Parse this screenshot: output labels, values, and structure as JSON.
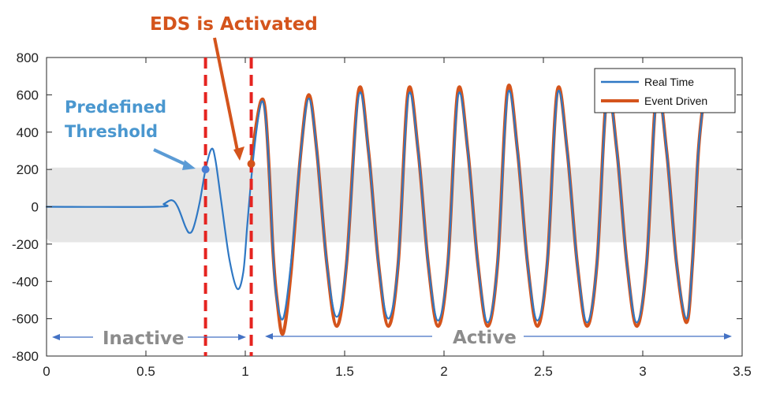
{
  "chart_data": {
    "type": "line",
    "xlim": [
      0,
      3.5
    ],
    "ylim": [
      -800,
      800
    ],
    "x_ticks": [
      0,
      0.5,
      1,
      1.5,
      2,
      2.5,
      3,
      3.5
    ],
    "x_tick_labels": [
      "0",
      "0.5",
      "1",
      "1.5",
      "2",
      "2.5",
      "3",
      "3.5"
    ],
    "y_ticks": [
      800,
      600,
      400,
      200,
      0,
      -200,
      -400,
      -600,
      -800
    ],
    "y_tick_labels": [
      "800",
      "600",
      "400",
      "200",
      "0",
      "-200",
      "-400",
      "-600",
      "-800"
    ],
    "grid": false,
    "legend_position": "top-right",
    "threshold_band": [
      -190,
      210
    ],
    "series": [
      {
        "name": "Real Time",
        "color": "#2f78c4",
        "x": [
          0,
          0.56,
          0.59,
          0.63,
          0.66,
          0.7,
          0.72,
          0.74,
          0.77,
          0.8,
          0.83,
          0.85,
          0.88,
          0.92,
          0.96,
          0.99,
          1.01,
          1.03,
          1.055,
          1.08,
          1.1,
          1.12,
          1.14,
          1.155,
          1.19,
          1.23,
          1.28,
          1.32,
          1.36,
          1.41,
          1.46,
          1.51,
          1.57,
          1.62,
          1.67,
          1.72,
          1.77,
          1.82,
          1.87,
          1.92,
          1.97,
          2.02,
          2.07,
          2.12,
          2.17,
          2.22,
          2.27,
          2.32,
          2.37,
          2.42,
          2.47,
          2.52,
          2.57,
          2.62,
          2.67,
          2.72,
          2.77,
          2.82,
          2.87,
          2.92,
          2.97,
          3.02,
          3.07,
          3.12,
          3.17,
          3.22,
          3.25,
          3.28,
          3.31
        ],
        "y": [
          0,
          0,
          15,
          35,
          0,
          -110,
          -140,
          -110,
          20,
          200,
          310,
          250,
          20,
          -280,
          -440,
          -350,
          -100,
          150,
          400,
          560,
          500,
          200,
          -250,
          -470,
          -600,
          -300,
          300,
          580,
          300,
          -300,
          -590,
          -300,
          590,
          300,
          -300,
          -600,
          -300,
          590,
          300,
          -300,
          -610,
          -300,
          590,
          300,
          -300,
          -620,
          -300,
          600,
          300,
          -300,
          -610,
          -300,
          600,
          300,
          -300,
          -620,
          -300,
          590,
          300,
          -300,
          -620,
          -300,
          600,
          300,
          -300,
          -600,
          -300,
          300,
          600
        ]
      },
      {
        "name": "Event Driven",
        "color": "#d4541c",
        "x": [
          1.03,
          1.055,
          1.08,
          1.1,
          1.12,
          1.14,
          1.16,
          1.19,
          1.23,
          1.28,
          1.32,
          1.36,
          1.41,
          1.46,
          1.51,
          1.57,
          1.62,
          1.67,
          1.72,
          1.77,
          1.82,
          1.87,
          1.92,
          1.97,
          2.02,
          2.07,
          2.12,
          2.17,
          2.22,
          2.27,
          2.32,
          2.37,
          2.42,
          2.47,
          2.52,
          2.57,
          2.62,
          2.67,
          2.72,
          2.77,
          2.82,
          2.87,
          2.92,
          2.97,
          3.02,
          3.07,
          3.12,
          3.17,
          3.22,
          3.25,
          3.28,
          3.31
        ],
        "y": [
          230,
          440,
          570,
          520,
          200,
          -250,
          -500,
          -680,
          -350,
          300,
          600,
          300,
          -300,
          -640,
          -300,
          620,
          300,
          -300,
          -640,
          -300,
          620,
          300,
          -300,
          -640,
          -300,
          620,
          300,
          -300,
          -640,
          -300,
          630,
          300,
          -300,
          -640,
          -300,
          620,
          300,
          -300,
          -640,
          -300,
          610,
          300,
          -300,
          -640,
          -300,
          620,
          300,
          -300,
          -620,
          -300,
          300,
          610
        ]
      }
    ],
    "markers": [
      {
        "x": 0.8,
        "y": 200,
        "color": "#4a7fd6"
      },
      {
        "x": 1.03,
        "y": 230,
        "color": "#d4541c"
      }
    ],
    "vlines": [
      0.8,
      1.03
    ],
    "annotations": {
      "eds": "EDS is Activated",
      "predefined_1": "Predefined",
      "predefined_2": "Threshold",
      "inactive": "Inactive",
      "active": "Active"
    }
  }
}
